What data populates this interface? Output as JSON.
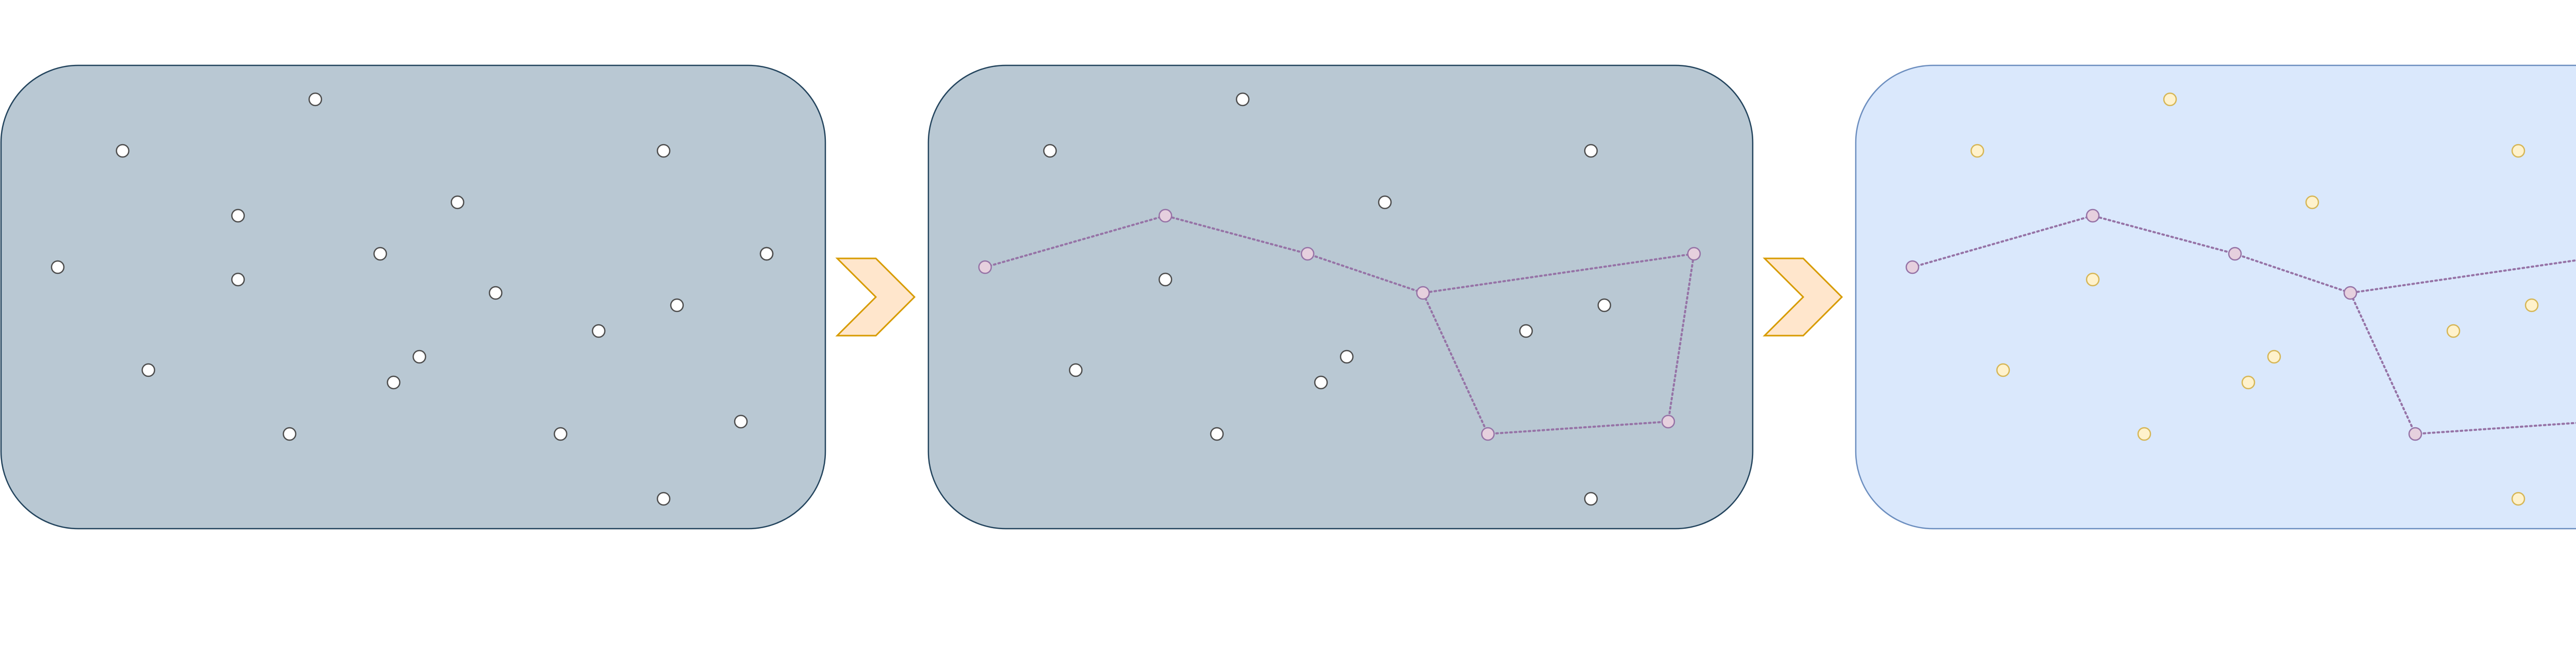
{
  "colors": {
    "background": "#ffffff",
    "panel_dark_fill": "#b9c8d3",
    "panel_dark_stroke": "#23445d",
    "panel_light_fill": "#dae8fc",
    "panel_light_stroke": "#6c8ebf",
    "star_white_fill": "#ffffff",
    "star_white_stroke": "#4d4d4d",
    "star_highlight_fill": "#e6d0de",
    "star_highlight_stroke": "#9673a6",
    "star_yellow_fill": "#fff2cc",
    "star_yellow_stroke": "#d6b656",
    "constellation_line": "#9673a6",
    "arrow_fill": "#ffe6cc",
    "arrow_stroke": "#d79b00"
  },
  "panels": [
    {
      "name": "panel-starfield",
      "style": "dark",
      "constellation": false
    },
    {
      "name": "panel-constellation-identified",
      "style": "dark",
      "constellation": true
    },
    {
      "name": "panel-constellation-highlighted",
      "style": "light",
      "constellation": true
    }
  ],
  "arrows": [
    {
      "name": "arrow-step-1",
      "icon": "chevron-right-icon"
    },
    {
      "name": "arrow-step-2",
      "icon": "chevron-right-icon"
    }
  ]
}
